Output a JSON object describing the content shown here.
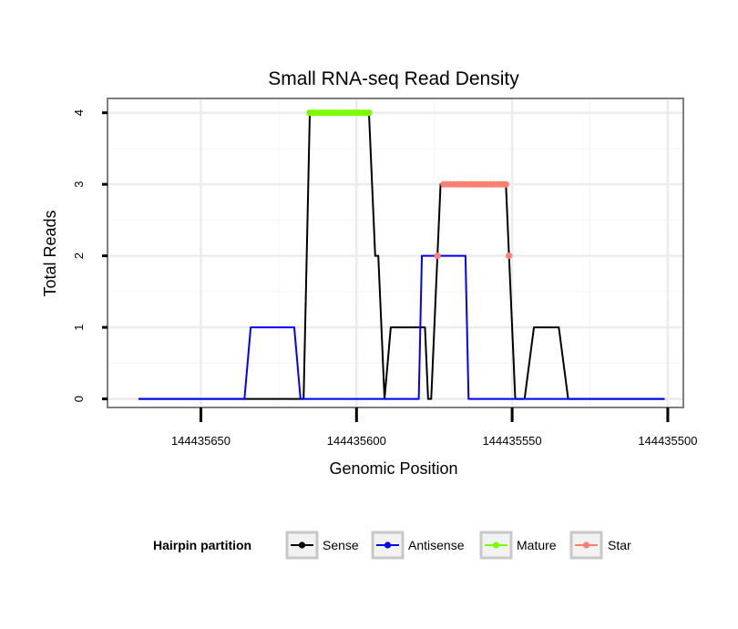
{
  "chart_data": {
    "type": "line",
    "title": "Small RNA-seq Read Density",
    "xlabel": "Genomic Position",
    "ylabel": "Total Reads",
    "x_reversed": true,
    "xlim": [
      144435680,
      144435495
    ],
    "ylim": [
      -0.12,
      4.2
    ],
    "x_ticks": [
      144435650,
      144435600,
      144435550,
      144435500
    ],
    "x_tick_labels": [
      "144435650",
      "144435600",
      "144435550",
      "144435500"
    ],
    "y_ticks": [
      0,
      1,
      2,
      3,
      4
    ],
    "y_tick_labels": [
      "0",
      "1",
      "2",
      "3",
      "4"
    ],
    "grid": true,
    "legend": {
      "title": "Hairpin partition",
      "position": "bottom",
      "entries": [
        {
          "name": "Sense",
          "color": "#000000"
        },
        {
          "name": "Antisense",
          "color": "#0000ff"
        },
        {
          "name": "Mature",
          "color": "#7cfc00"
        },
        {
          "name": "Star",
          "color": "#fa8072"
        }
      ]
    },
    "series": [
      {
        "name": "Sense",
        "color": "#000000",
        "x": [
          144435670,
          144435617,
          144435616,
          144435615,
          144435596,
          144435595,
          144435594,
          144435593,
          144435592,
          144435591,
          144435589,
          144435578,
          144435577,
          144435576,
          144435574,
          144435573,
          144435571,
          144435569,
          144435568,
          144435567,
          144435552,
          144435551,
          144435549,
          144435546,
          144435543,
          144435535,
          144435532,
          144435501
        ],
        "y": [
          0,
          0,
          2,
          4,
          4,
          3,
          2,
          2,
          1,
          0,
          1,
          1,
          0,
          0,
          2,
          3,
          3,
          3,
          3,
          3,
          3,
          2,
          0,
          0,
          1,
          1,
          0,
          0
        ]
      },
      {
        "name": "Antisense",
        "color": "#0000ff",
        "x": [
          144435670,
          144435636,
          144435634,
          144435620,
          144435618,
          144435591,
          144435580,
          144435579,
          144435565,
          144435564,
          144435533,
          144435501
        ],
        "y": [
          0,
          0,
          1,
          1,
          0,
          0,
          0,
          2,
          2,
          0,
          0,
          0
        ]
      },
      {
        "name": "Mature",
        "color": "#7cfc00",
        "points_x": [
          144435615,
          144435614,
          144435613,
          144435612,
          144435611,
          144435610,
          144435609,
          144435608,
          144435607,
          144435606,
          144435605,
          144435604,
          144435603,
          144435602,
          144435601,
          144435600,
          144435599,
          144435598,
          144435597,
          144435596
        ],
        "points_y": [
          4,
          4,
          4,
          4,
          4,
          4,
          4,
          4,
          4,
          4,
          4,
          4,
          4,
          4,
          4,
          4,
          4,
          4,
          4,
          4
        ]
      },
      {
        "name": "Star",
        "color": "#fa8072",
        "points_x": [
          144435572,
          144435571,
          144435570,
          144435569,
          144435568,
          144435567,
          144435566,
          144435565,
          144435564,
          144435563,
          144435562,
          144435561,
          144435560,
          144435559,
          144435558,
          144435557,
          144435556,
          144435555,
          144435554,
          144435553,
          144435552,
          144435574,
          144435551
        ],
        "points_y": [
          3,
          3,
          3,
          3,
          3,
          3,
          3,
          3,
          3,
          3,
          3,
          3,
          3,
          3,
          3,
          3,
          3,
          3,
          3,
          3,
          3,
          2,
          2
        ]
      }
    ]
  }
}
